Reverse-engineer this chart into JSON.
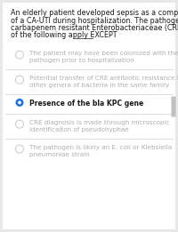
{
  "background_color": "#e8e8e8",
  "card_color": "#ffffff",
  "title_lines": [
    "An elderly patient developed sepsis as a complication",
    "of a CA-UTI during hospitalization. The pathogen is a",
    "carbapenem resistant Enterobacteriaceae (CRE). All",
    "of the following apply EXCEPT"
  ],
  "title_fontsize": 5.8,
  "except_underline": true,
  "options": [
    {
      "text": "The patient may have been colonized with the CRE\npathogen prior to hospitalization",
      "selected": false
    },
    {
      "text": "Potential transfer of CRE antibiotic resistance to\nother genera of bacteria in the same family",
      "selected": false
    },
    {
      "text": "Presence of the bla KPC gene",
      "selected": true
    },
    {
      "text": "CRE diagnosis is made through microscopic\nidentificaiton of pseudohyphae",
      "selected": false
    },
    {
      "text": "The pathogen is likely an E. coli or Klebsiella\npneumoniae strain",
      "selected": false
    }
  ],
  "option_fontsize": 5.2,
  "selected_fontsize": 5.5,
  "divider_color": "#d0d0d0",
  "text_color_normal": "#b0b0b0",
  "text_color_selected": "#1a1a1a",
  "circle_color_normal": "#c8c8c8",
  "circle_color_selected": "#1a73e8",
  "scrollbar_color": "#c0c0c0",
  "title_color": "#1a1a1a"
}
